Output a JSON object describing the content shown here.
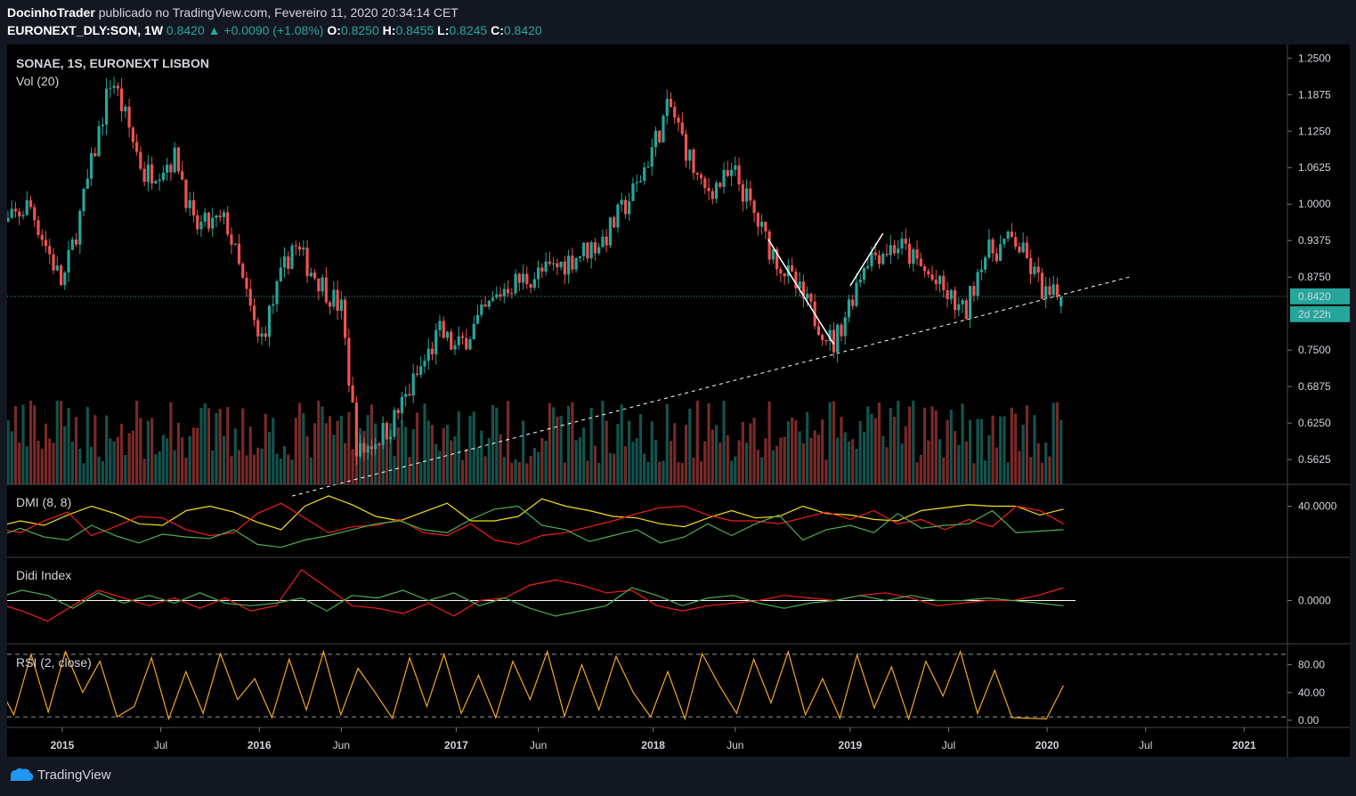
{
  "header": {
    "author": "DocinhoTrader",
    "published_text": "publicado no TradingView.com, Fevereiro 11, 2020 20:34:14 CET",
    "symbol": "EURONEXT_DLY:SON, 1W",
    "last": "0.8420",
    "change": "+0.0090 (+1.08%)",
    "o_label": "O:",
    "o": "0.8250",
    "h_label": "H:",
    "h": "0.8455",
    "l_label": "L:",
    "l": "0.8245",
    "c_label": "C:",
    "c": "0.8420"
  },
  "footer": {
    "brand": "TradingView"
  },
  "colors": {
    "up": "#26a69a",
    "down": "#ef5350",
    "bg": "#000000",
    "yellow": "#f5e010",
    "green": "#4caf50",
    "red": "#f21e1e",
    "orange": "#f5a623"
  },
  "chart_data": [
    {
      "type": "candlestick",
      "title": "SONAE, 1S, EURONEXT LISBON",
      "volume_label": "Vol (20)",
      "y_ticks": [
        "1.2500",
        "1.1875",
        "1.1250",
        "1.0625",
        "1.0000",
        "0.9375",
        "0.8750",
        "0.7500",
        "0.6875",
        "0.6250",
        "0.5625"
      ],
      "ylim": [
        0.52,
        1.255
      ],
      "last_price_label": "0.8420",
      "countdown_label": "2d 22h",
      "x_ticks": [
        "2015",
        "Jul",
        "2016",
        "Jun",
        "2017",
        "Jun",
        "2018",
        "Jun",
        "2019",
        "Jul",
        "2020",
        "Jul",
        "2021"
      ],
      "keypoints": [
        [
          "2014-09",
          0.95
        ],
        [
          "2014-11",
          1.0
        ],
        [
          "2015-01",
          0.86
        ],
        [
          "2015-02",
          0.97
        ],
        [
          "2015-04",
          1.22
        ],
        [
          "2015-06",
          1.05
        ],
        [
          "2015-08",
          1.08
        ],
        [
          "2015-09",
          0.96
        ],
        [
          "2015-11",
          0.97
        ],
        [
          "2016-01",
          0.76
        ],
        [
          "2016-03",
          0.93
        ],
        [
          "2016-06",
          0.82
        ],
        [
          "2016-07",
          0.57
        ],
        [
          "2016-09",
          0.62
        ],
        [
          "2016-12",
          0.78
        ],
        [
          "2017-01",
          0.75
        ],
        [
          "2017-04",
          0.86
        ],
        [
          "2017-07",
          0.89
        ],
        [
          "2017-10",
          0.94
        ],
        [
          "2017-12",
          1.03
        ],
        [
          "2018-02",
          1.17
        ],
        [
          "2018-04",
          1.02
        ],
        [
          "2018-06",
          1.05
        ],
        [
          "2018-08",
          0.93
        ],
        [
          "2018-11",
          0.8
        ],
        [
          "2018-12",
          0.76
        ],
        [
          "2019-02",
          0.91
        ],
        [
          "2019-04",
          0.93
        ],
        [
          "2019-06",
          0.87
        ],
        [
          "2019-08",
          0.81
        ],
        [
          "2019-09",
          0.91
        ],
        [
          "2019-11",
          0.94
        ],
        [
          "2020-01",
          0.84
        ],
        [
          "2020-02",
          0.842
        ]
      ],
      "trendline_dashed": [
        [
          "2016-03",
          0.5
        ],
        [
          "2020-06",
          0.875
        ]
      ],
      "white_lines": [
        [
          [
            "2018-08",
            0.94
          ],
          [
            "2018-12",
            0.76
          ]
        ],
        [
          [
            "2019-01",
            0.86
          ],
          [
            "2019-03",
            0.95
          ]
        ]
      ]
    },
    {
      "type": "line",
      "title": "DMI (8, 8)",
      "y_ticks": [
        "40.0000"
      ],
      "series": [
        {
          "color": "#f5e010",
          "values": [
            26,
            30,
            27,
            34,
            40,
            35,
            28,
            27,
            37,
            40,
            36,
            29,
            24,
            40,
            47,
            41,
            33,
            30,
            36,
            42,
            30,
            30,
            33,
            45,
            40,
            37,
            33,
            32,
            28,
            26,
            32,
            37,
            32,
            33,
            40,
            35,
            34,
            31,
            30,
            37,
            39,
            41,
            40,
            40,
            34,
            38
          ]
        },
        {
          "color": "#f21e1e",
          "values": [
            25,
            22,
            30,
            36,
            20,
            26,
            33,
            32,
            24,
            20,
            22,
            35,
            42,
            32,
            22,
            26,
            27,
            31,
            22,
            20,
            28,
            17,
            14,
            20,
            22,
            26,
            30,
            35,
            39,
            40,
            34,
            30,
            30,
            28,
            32,
            36,
            31,
            37,
            28,
            31,
            24,
            31,
            26,
            40,
            37,
            28
          ]
        },
        {
          "color": "#4caf50",
          "values": [
            19,
            25,
            19,
            17,
            27,
            20,
            15,
            21,
            19,
            18,
            24,
            14,
            12,
            17,
            20,
            24,
            28,
            30,
            24,
            22,
            31,
            38,
            40,
            27,
            24,
            16,
            20,
            24,
            15,
            19,
            28,
            20,
            28,
            34,
            17,
            24,
            27,
            22,
            35,
            25,
            27,
            28,
            37,
            22,
            23,
            24
          ]
        }
      ]
    },
    {
      "type": "line",
      "title": "Didi Index",
      "y_ticks": [
        "0.0000"
      ],
      "series": [
        {
          "color": "#f21e1e",
          "values": [
            -1,
            -4,
            -8,
            -2,
            4,
            1,
            -2,
            1,
            -3,
            1,
            -4,
            -2,
            12,
            5,
            -2,
            -3,
            -5,
            -1,
            -6,
            0,
            1,
            6,
            8,
            6,
            3,
            4,
            -2,
            -4,
            -2,
            -1,
            0,
            2,
            1,
            0,
            2,
            3,
            1,
            -2,
            -1,
            0,
            0,
            2,
            5
          ]
        },
        {
          "color": "#4caf50",
          "values": [
            1,
            4,
            2,
            -3,
            3,
            -1,
            2,
            -1,
            3,
            -1,
            -2,
            -1,
            1,
            -4,
            2,
            1,
            4,
            0,
            3,
            -2,
            1,
            -3,
            -6,
            -4,
            -2,
            5,
            2,
            -2,
            1,
            2,
            -1,
            -3,
            -1,
            0,
            2,
            0,
            2,
            0,
            0,
            1,
            0,
            -1,
            -2
          ]
        }
      ]
    },
    {
      "type": "line",
      "title": "RSI (2, close)",
      "y_ticks": [
        "80.00",
        "40.00",
        "0.00"
      ],
      "series": [
        {
          "color": "#f5a623",
          "values": [
            55,
            8,
            95,
            12,
            99,
            40,
            85,
            5,
            20,
            90,
            2,
            70,
            10,
            96,
            30,
            60,
            4,
            88,
            15,
            99,
            8,
            75,
            40,
            3,
            90,
            20,
            95,
            10,
            65,
            4,
            85,
            30,
            99,
            6,
            80,
            15,
            92,
            40,
            5,
            70,
            2,
            96,
            50,
            10,
            88,
            25,
            99,
            8,
            60,
            3,
            94,
            18,
            77,
            2,
            85,
            35,
            99,
            10,
            72,
            4,
            3,
            2,
            50
          ]
        }
      ]
    }
  ]
}
